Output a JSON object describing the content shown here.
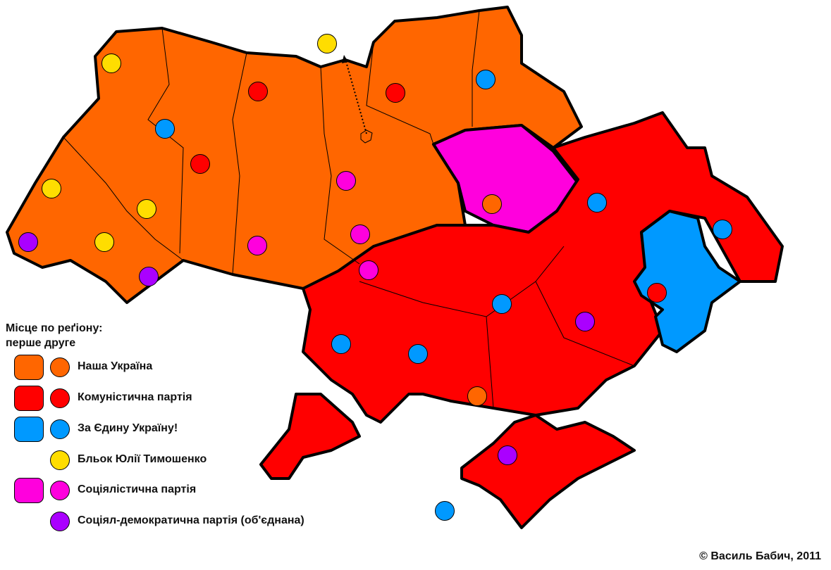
{
  "legend": {
    "title_line1": "Місце по реґіону:",
    "title_line2": "перше друге",
    "items": [
      {
        "key": "nu",
        "label": "Наша Україна",
        "color": "#ff6600",
        "first": true
      },
      {
        "key": "kpu",
        "label": "Комуністична партія",
        "color": "#ff0000",
        "first": true
      },
      {
        "key": "zayu",
        "label": "За Єдину Україну!",
        "color": "#0099ff",
        "first": true
      },
      {
        "key": "byut",
        "label": "Бльок Юлії Тимошенко",
        "color": "#ffdd00",
        "first": false
      },
      {
        "key": "spu",
        "label": "Соціялістична партія",
        "color": "#ff00dd",
        "first": true
      },
      {
        "key": "sdpu",
        "label": "Соціял-демократична партія (об'єднана)",
        "color": "#aa00ff",
        "first": false
      }
    ]
  },
  "second_place_markers": [
    "byut",
    "byut",
    "kpu",
    "kpu",
    "zayu",
    "zayu",
    "kpu",
    "spu",
    "byut",
    "byut",
    "nu",
    "zayu",
    "zayu",
    "sdpu",
    "byut",
    "spu",
    "spu",
    "spu",
    "sdpu",
    "kpu",
    "zayu",
    "sdpu",
    "zayu",
    "zayu",
    "nu",
    "sdpu",
    "zayu"
  ],
  "credit": "© Василь Бабич, 2011"
}
